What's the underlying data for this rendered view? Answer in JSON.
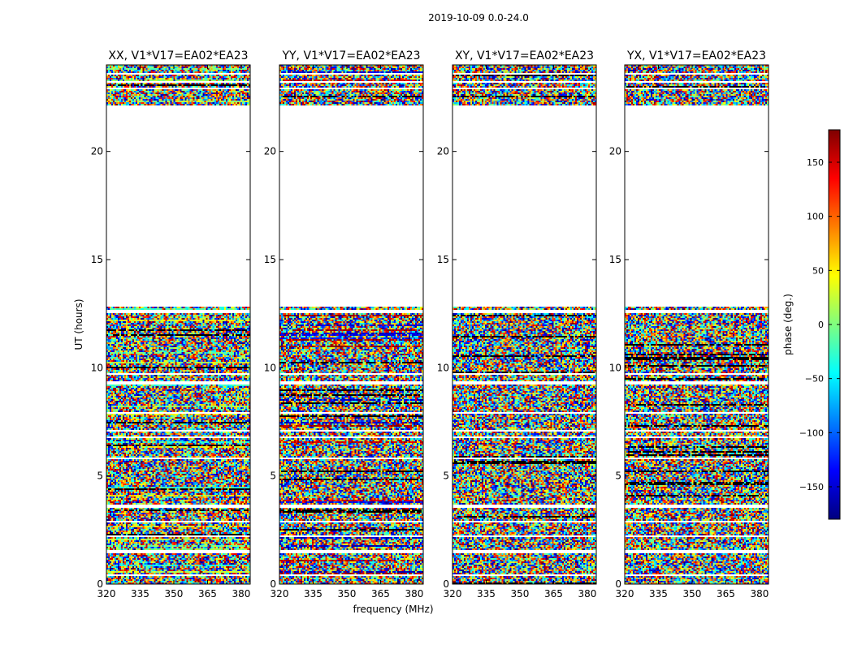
{
  "chart_data": {
    "type": "heatmap",
    "title": "2019-10-09 0.0-24.0",
    "xlabel": "frequency (MHz)",
    "ylabel": "UT (hours)",
    "xlim": [
      320,
      384
    ],
    "ylim": [
      0,
      24
    ],
    "x_ticks": [
      320,
      335,
      350,
      365,
      380
    ],
    "y_ticks": [
      0,
      5,
      10,
      15,
      20
    ],
    "colorbar": {
      "label": "phase (deg.)",
      "range": [
        -180,
        180
      ],
      "ticks": [
        150,
        100,
        50,
        0,
        -50,
        -100,
        -150
      ],
      "tick_labels": [
        "150",
        "100",
        "50",
        "0",
        "−50",
        "−100",
        "−150"
      ],
      "colormap": "jet",
      "colors": [
        "#00007f",
        "#0000ff",
        "#007fff",
        "#00ffff",
        "#7fff7f",
        "#ffff00",
        "#ff7f00",
        "#ff0000",
        "#7f0000"
      ]
    },
    "data_time_ranges_hours": [
      [
        0,
        12.8
      ],
      [
        22.1,
        24
      ]
    ],
    "blank_rows_hours": [
      0.4,
      1.5,
      2.2,
      2.9,
      3.6,
      5.8,
      6.8,
      7.1,
      7.9,
      9.3,
      9.7,
      12.6,
      22.9,
      23.2,
      23.6
    ],
    "panels": [
      {
        "title": "XX, V1*V17=EA02*EA23",
        "bias": "mixed"
      },
      {
        "title": "YY, V1*V17=EA02*EA23",
        "bias": "red-blue"
      },
      {
        "title": "XY, V1*V17=EA02*EA23",
        "bias": "none"
      },
      {
        "title": "YX, V1*V17=EA02*EA23",
        "bias": "none"
      }
    ]
  }
}
